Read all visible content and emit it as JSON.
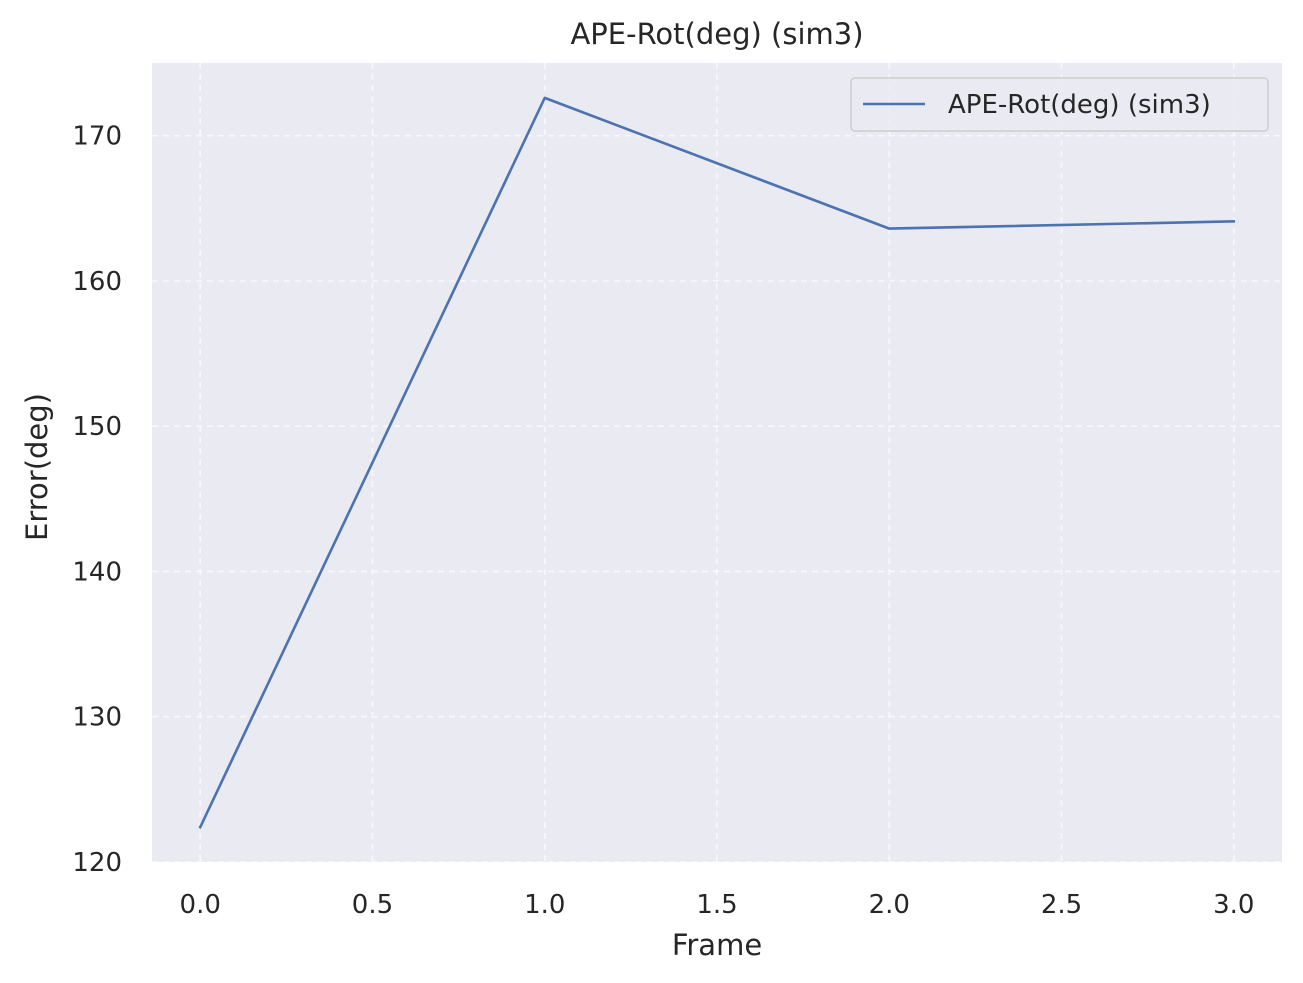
{
  "chart_data": {
    "type": "line",
    "title": "APE-Rot(deg) (sim3)",
    "xlabel": "Frame",
    "ylabel": "Error(deg)",
    "x": [
      0,
      1,
      2,
      3
    ],
    "series": [
      {
        "name": "APE-Rot(deg) (sim3)",
        "values": [
          122.4,
          172.6,
          163.6,
          164.1
        ],
        "color": "#4c72b0"
      }
    ],
    "xlim": [
      -0.14,
      3.14
    ],
    "ylim": [
      120,
      175
    ],
    "xticks": [
      "0.0",
      "0.5",
      "1.0",
      "1.5",
      "2.0",
      "2.5",
      "3.0"
    ],
    "yticks": [
      "120",
      "130",
      "140",
      "150",
      "160",
      "170"
    ],
    "grid": true,
    "legend_position": "top-right",
    "background_color": "#eaeaf2"
  }
}
